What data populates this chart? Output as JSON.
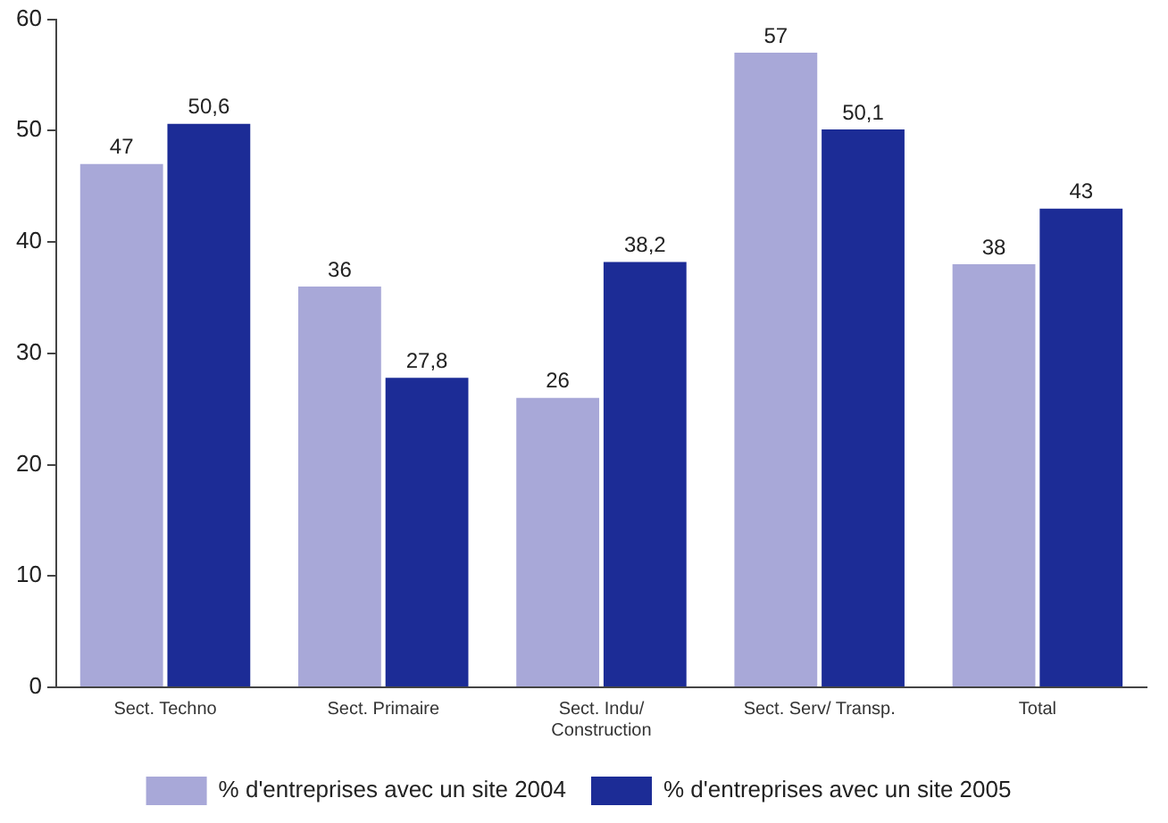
{
  "chart_data": {
    "type": "bar",
    "categories": [
      "Sect. Techno",
      "Sect. Primaire",
      "Sect. Indu/ Construction",
      "Sect. Serv/ Transp.",
      "Total"
    ],
    "series": [
      {
        "name": "% d'entreprises avec un site 2004",
        "color": "#a8a8d8",
        "values": [
          47,
          36,
          26,
          57,
          38
        ],
        "value_labels": [
          "47",
          "36",
          "26",
          "57",
          "38"
        ]
      },
      {
        "name": "% d'entreprises avec un site 2005",
        "color": "#1c2c96",
        "values": [
          50.6,
          27.8,
          38.2,
          50.1,
          43
        ],
        "value_labels": [
          "50,6",
          "27,8",
          "38,2",
          "50,1",
          "43"
        ]
      }
    ],
    "ylim": [
      0,
      60
    ],
    "yticks": [
      0,
      10,
      20,
      30,
      40,
      50,
      60
    ],
    "grid": false,
    "legend": "bottom"
  }
}
